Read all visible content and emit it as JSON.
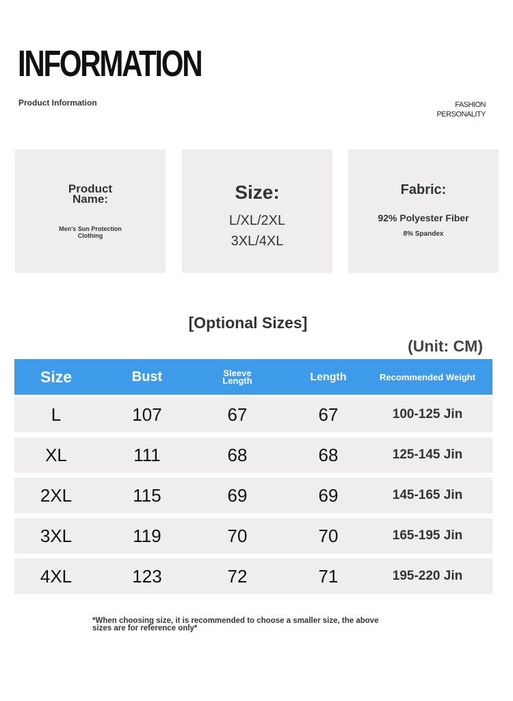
{
  "header": {
    "title": "INFORMATION",
    "subtitle": "Product Information",
    "tag": [
      "FASHION",
      "PERSONALITY"
    ]
  },
  "cards": [
    {
      "label": "Product Name:",
      "lines": [
        "Men's Sun Protection Clothing"
      ]
    },
    {
      "label": "Size:",
      "lines": [
        "L/XL/2XL",
        "3XL/4XL"
      ]
    },
    {
      "label": "Fabric:",
      "lines": [
        "92% Polyester Fiber",
        "8% Spandex"
      ]
    }
  ],
  "table": {
    "title": "[Optional Sizes]",
    "unit": "(Unit: CM)",
    "headers": [
      "Size",
      "Bust",
      "Sleeve Length",
      "Length",
      "Recommended Weight"
    ],
    "rows": [
      [
        "L",
        107,
        67,
        67,
        "100-125 Jin"
      ],
      [
        "XL",
        111,
        68,
        68,
        "125-145 Jin"
      ],
      [
        "2XL",
        115,
        69,
        69,
        "145-165 Jin"
      ],
      [
        "3XL",
        119,
        70,
        70,
        "165-195 Jin"
      ],
      [
        "4XL",
        123,
        72,
        71,
        "195-220 Jin"
      ]
    ]
  },
  "note": "*When choosing size, it is recommended to choose a smaller size, the above sizes are for reference only*"
}
